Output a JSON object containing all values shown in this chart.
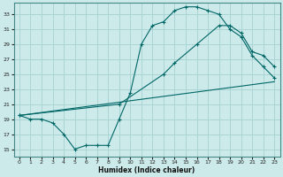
{
  "xlabel": "Humidex (Indice chaleur)",
  "bg_color": "#cceaea",
  "line_color": "#006666",
  "grid_color": "#aad4d4",
  "xlim": [
    -0.5,
    23.5
  ],
  "ylim": [
    14.0,
    34.5
  ],
  "yticks": [
    15,
    17,
    19,
    21,
    23,
    25,
    27,
    29,
    31,
    33
  ],
  "xticks": [
    0,
    1,
    2,
    3,
    4,
    5,
    6,
    7,
    8,
    9,
    10,
    11,
    12,
    13,
    14,
    15,
    16,
    17,
    18,
    19,
    20,
    21,
    22,
    23
  ],
  "line1_x": [
    0,
    1,
    2,
    3,
    4,
    5,
    6,
    7,
    8,
    9,
    10,
    11,
    12,
    13,
    14,
    15,
    16,
    17,
    18,
    19,
    20,
    21,
    22,
    23
  ],
  "line1_y": [
    19.5,
    19.0,
    19.0,
    18.5,
    17.0,
    15.0,
    15.5,
    15.5,
    15.5,
    19.0,
    22.5,
    29.0,
    31.5,
    32.0,
    33.5,
    34.0,
    34.0,
    33.5,
    33.0,
    31.0,
    30.0,
    27.5,
    26.0,
    24.5
  ],
  "line2_x": [
    0,
    23
  ],
  "line2_y": [
    19.5,
    24.0
  ],
  "line3_x": [
    0,
    9,
    13,
    14,
    16,
    18,
    19,
    20,
    21,
    22,
    23
  ],
  "line3_y": [
    19.5,
    21.0,
    25.0,
    26.5,
    29.0,
    31.5,
    31.5,
    30.5,
    28.0,
    27.5,
    26.0
  ]
}
